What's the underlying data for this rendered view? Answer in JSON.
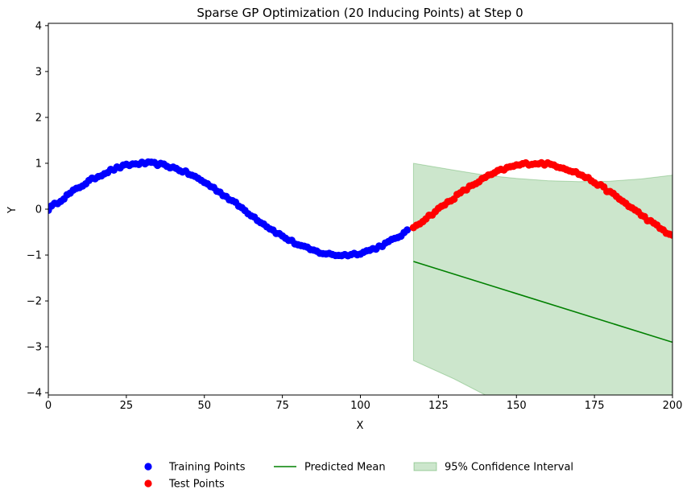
{
  "chart_data": {
    "type": "scatter",
    "title": "Sparse GP Optimization (20 Inducing Points) at Step 0",
    "xlabel": "X",
    "ylabel": "Y",
    "xlim": [
      0,
      200
    ],
    "ylim": [
      -4.05,
      4.05
    ],
    "x_ticks": [
      0,
      25,
      50,
      75,
      100,
      125,
      150,
      175,
      200
    ],
    "y_ticks": [
      -4,
      -3,
      -2,
      -1,
      0,
      1,
      2,
      3,
      4
    ],
    "grid": false,
    "legend_position": "bottom-center, outside plot",
    "train_end_x": 115,
    "test_start_x": 117,
    "series": [
      {
        "name": "Training Points",
        "kind": "scatter",
        "color": "#0000ff",
        "x_range": [
          0,
          115
        ],
        "function": "sin(2*pi*x/125)",
        "noise": 0.03
      },
      {
        "name": "Test Points",
        "kind": "scatter",
        "color": "#ff0000",
        "x_range": [
          117,
          200
        ],
        "function": "sin(2*pi*x/125)",
        "noise": 0.03
      },
      {
        "name": "Predicted Mean",
        "kind": "line",
        "color": "#008000",
        "x": [
          117,
          200
        ],
        "y": [
          -1.14,
          -2.9
        ]
      },
      {
        "name": "95% Confidence Interval",
        "kind": "band",
        "color": "#008000",
        "opacity": 0.2,
        "x": [
          117,
          130,
          140,
          150,
          160,
          170,
          180,
          190,
          200
        ],
        "upper": [
          1.0,
          0.85,
          0.74,
          0.67,
          0.62,
          0.6,
          0.61,
          0.66,
          0.74
        ],
        "lower": [
          -3.3,
          -3.7,
          -4.05,
          -4.3,
          -4.5,
          -4.7,
          -4.9,
          -5.1,
          -5.3
        ]
      }
    ],
    "legend": [
      {
        "label": "Training Points",
        "marker": "circle",
        "color": "#0000ff"
      },
      {
        "label": "Test Points",
        "marker": "circle",
        "color": "#ff0000"
      },
      {
        "label": "Predicted Mean",
        "marker": "line",
        "color": "#008000"
      },
      {
        "label": "95% Confidence Interval",
        "marker": "patch",
        "color": "#008000"
      }
    ]
  }
}
